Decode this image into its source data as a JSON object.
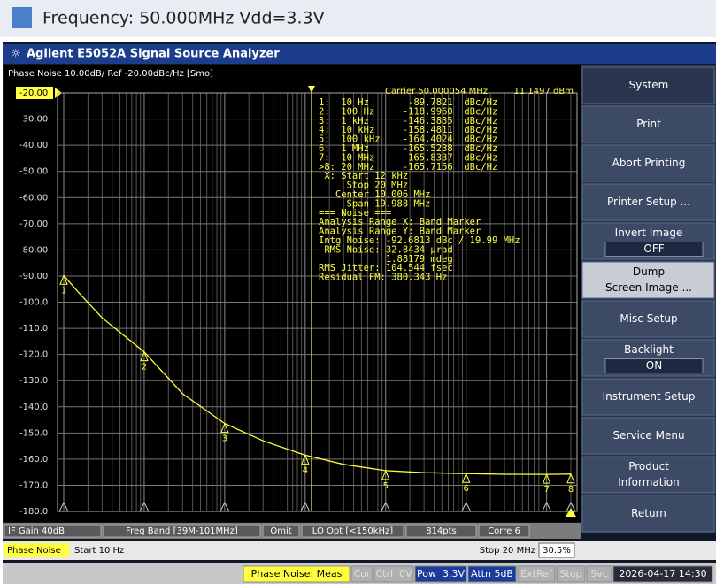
{
  "header": {
    "title": "Frequency: 50.000MHz Vdd=3.3V"
  },
  "window": {
    "title": "Agilent E5052A Signal Source Analyzer"
  },
  "plot": {
    "scale_label": "Phase Noise 10.00dB/ Ref -20.00dBc/Hz [Smo]",
    "carrier": "Carrier 50.000054 MHz",
    "carrier_power": "11.1497 dBm",
    "ylim": [
      -180,
      -20
    ],
    "yticks": [
      {
        "value": -20,
        "label": "-20.00"
      },
      {
        "value": -30,
        "label": "-30.00"
      },
      {
        "value": -40,
        "label": "-40.00"
      },
      {
        "value": -50,
        "label": "-50.00"
      },
      {
        "value": -60,
        "label": "-60.00"
      },
      {
        "value": -70,
        "label": "-70.00"
      },
      {
        "value": -80,
        "label": "-80.00"
      },
      {
        "value": -90,
        "label": "-90.00"
      },
      {
        "value": -100,
        "label": "-100.0"
      },
      {
        "value": -110,
        "label": "-110.0"
      },
      {
        "value": -120,
        "label": "-120.0"
      },
      {
        "value": -130,
        "label": "-130.0"
      },
      {
        "value": -140,
        "label": "-140.0"
      },
      {
        "value": -150,
        "label": "-150.0"
      },
      {
        "value": -160,
        "label": "-160.0"
      },
      {
        "value": -170,
        "label": "-170.0"
      },
      {
        "value": -180,
        "label": "-180.0"
      }
    ],
    "xlim": [
      10,
      20000000
    ],
    "log_x": true,
    "grid": true,
    "trace": {
      "color": "#ffff40",
      "x": [
        10,
        15,
        30,
        100,
        300,
        1000,
        3000,
        10000,
        30000,
        100000,
        300000,
        1000000,
        3000000,
        10000000,
        20000000
      ],
      "y": [
        -89.7821,
        -96,
        -106,
        -118.996,
        -135,
        -146.3835,
        -153,
        -158.4811,
        -162,
        -164.4024,
        -165.2,
        -165.5238,
        -165.8,
        -165.8337,
        -165.7156
      ]
    },
    "markers": [
      {
        "label": "1",
        "x": 10,
        "y": -89.7821
      },
      {
        "label": "2",
        "x": 100,
        "y": -118.996
      },
      {
        "label": "3",
        "x": 1000,
        "y": -146.3835
      },
      {
        "label": "4",
        "x": 10000,
        "y": -158.4811
      },
      {
        "label": "5",
        "x": 100000,
        "y": -164.4024
      },
      {
        "label": "6",
        "x": 1000000,
        "y": -165.5238
      },
      {
        "label": "7",
        "x": 10000000,
        "y": -165.8337
      },
      {
        "label": "8",
        "x": 20000000,
        "y": -165.7156
      }
    ],
    "band_start": 12000,
    "readout": [
      "1:  10 Hz       -89.7821  dBc/Hz",
      "2:  100 Hz     -118.9960  dBc/Hz",
      "3:  1 kHz      -146.3835  dBc/Hz",
      "4:  10 kHz     -158.4811  dBc/Hz",
      "5:  100 kHz    -164.4024  dBc/Hz",
      "6:  1 MHz      -165.5238  dBc/Hz",
      "7:  10 MHz     -165.8337  dBc/Hz",
      ">8: 20 MHz     -165.7156  dBc/Hz",
      " X: Start 12 kHz",
      "     Stop 20 MHz",
      "   Center 10.006 MHz",
      "     Span 19.988 MHz",
      "=== Noise ===",
      "Analysis Range X: Band Marker",
      "Analysis Range Y: Band Marker",
      "Intg Noise: -92.6813 dBc / 19.99 MHz",
      " RMS Noise: 32.8434 µrad",
      "            1.88179 mdeg",
      "RMS Jitter: 104.544 fsec",
      "Residual FM: 380.343 Hz"
    ]
  },
  "softkeys": [
    {
      "lines": [
        "System"
      ],
      "kind": "header"
    },
    {
      "lines": [
        "Print"
      ]
    },
    {
      "lines": [
        "Abort Printing"
      ]
    },
    {
      "lines": [
        "Printer Setup ..."
      ]
    },
    {
      "lines": [
        "Invert Image"
      ],
      "value": "OFF"
    },
    {
      "lines": [
        "Dump",
        "Screen Image ..."
      ],
      "kind": "selected"
    },
    {
      "lines": [
        "Misc Setup"
      ]
    },
    {
      "lines": [
        "Backlight"
      ],
      "value": "ON"
    },
    {
      "lines": [
        "Instrument Setup"
      ]
    },
    {
      "lines": [
        "Service Menu"
      ]
    },
    {
      "lines": [
        "Product",
        "Information"
      ]
    },
    {
      "lines": [
        "Return"
      ]
    }
  ],
  "status": {
    "row1": [
      "IF Gain 40dB",
      "Freq Band [39M-101MHz]",
      "Omit",
      "LO Opt [<150kHz]",
      "814pts",
      "Corre 6"
    ],
    "row2": {
      "channel": "Phase Noise",
      "start": "Start 10 Hz",
      "stop": "Stop 20 MHz",
      "progress": "30.5%"
    },
    "row3": [
      {
        "text": "Phase Noise: Meas",
        "state": "active"
      },
      {
        "text": "Cor",
        "state": "inactive"
      },
      {
        "text": "Ctrl  0V",
        "state": "inactive"
      },
      {
        "text": "Pow  3.3V",
        "state": "on"
      },
      {
        "text": "Attn 5dB",
        "state": "on"
      },
      {
        "text": "ExtRef",
        "state": "inactive"
      },
      {
        "text": "Stop",
        "state": "inactive"
      },
      {
        "text": "Svc",
        "state": "inactive"
      },
      {
        "text": "2026-04-17 14:30",
        "state": "clock"
      }
    ]
  }
}
